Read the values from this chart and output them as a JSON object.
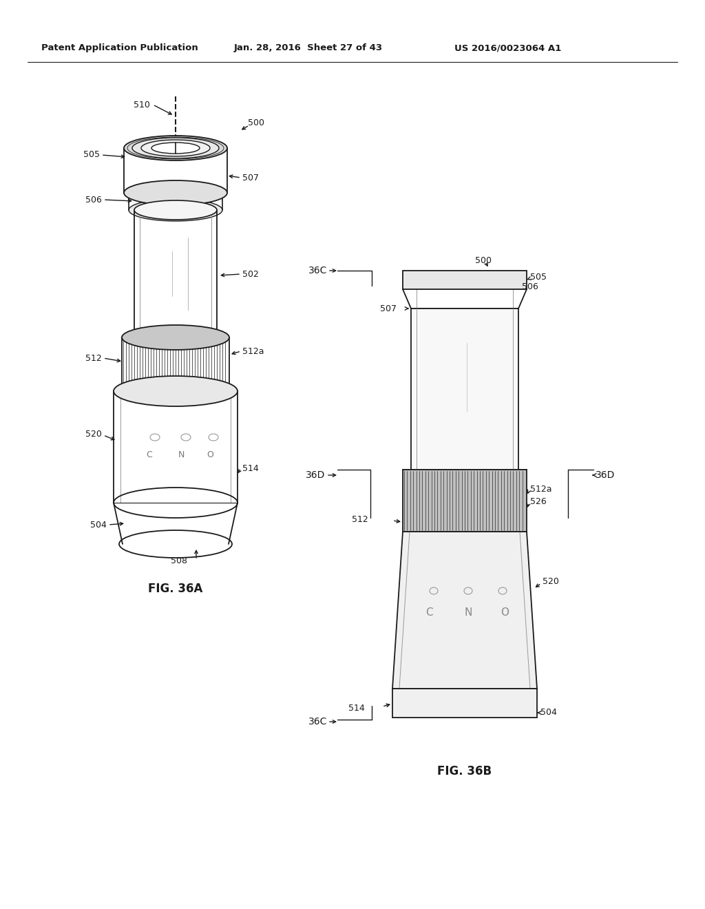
{
  "fig_width": 10.24,
  "fig_height": 13.2,
  "bg_color": "#ffffff",
  "header_text1": "Patent Application Publication",
  "header_text2": "Jan. 28, 2016  Sheet 27 of 43",
  "header_text3": "US 2016/0023064 A1",
  "fig_label_A": "FIG. 36A",
  "fig_label_B": "FIG. 36B",
  "line_color": "#1a1a1a",
  "light_gray": "#cccccc",
  "medium_gray": "#999999",
  "dark_gray": "#444444"
}
